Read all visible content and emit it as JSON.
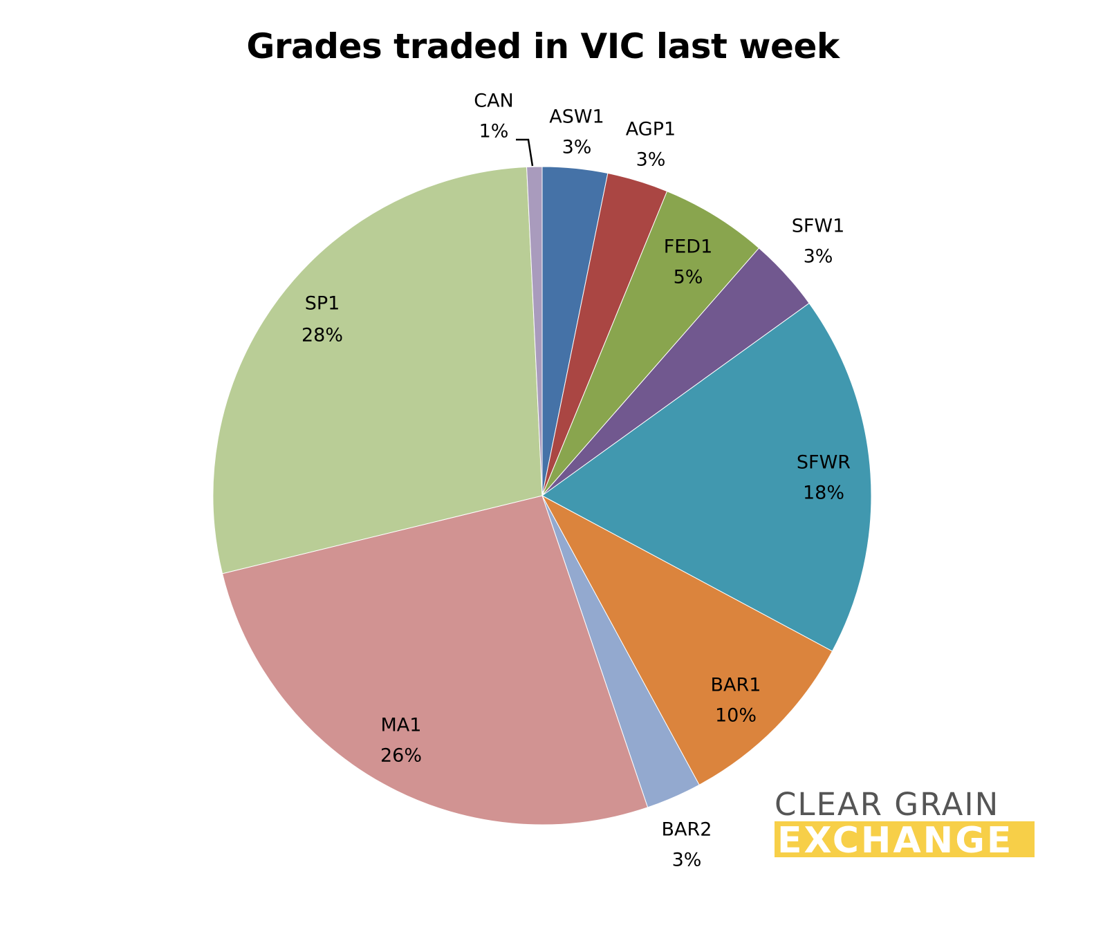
{
  "chart_data": {
    "type": "pie",
    "title": "Grades traded in VIC last week",
    "start_angle_deg": 0,
    "direction": "clockwise",
    "slices": [
      {
        "label": "ASW1",
        "value": 3,
        "percent_label": "3%",
        "color": "#4572a7"
      },
      {
        "label": "AGP1",
        "value": 3,
        "percent_label": "3%",
        "color": "#aa4643"
      },
      {
        "label": "FED1",
        "value": 5,
        "percent_label": "5%",
        "color": "#89a54e"
      },
      {
        "label": "SFW1",
        "value": 3,
        "percent_label": "3%",
        "color": "#71588f"
      },
      {
        "label": "SFWR",
        "value": 18,
        "percent_label": "18%",
        "color": "#4198af"
      },
      {
        "label": "BAR1",
        "value": 10,
        "percent_label": "10%",
        "color": "#db843d"
      },
      {
        "label": "BAR2",
        "value": 3,
        "percent_label": "3%",
        "color": "#93a9cf"
      },
      {
        "label": "MA1",
        "value": 26,
        "percent_label": "26%",
        "color": "#d19392"
      },
      {
        "label": "SP1",
        "value": 28,
        "percent_label": "28%",
        "color": "#b9cd96"
      },
      {
        "label": "CAN",
        "value": 1,
        "percent_label": "1%",
        "color": "#a99bbd"
      }
    ],
    "legend": "none (data labels on slices)"
  },
  "logo": {
    "line1": "CLEAR GRAIN",
    "line2": "EXCHANGE"
  }
}
